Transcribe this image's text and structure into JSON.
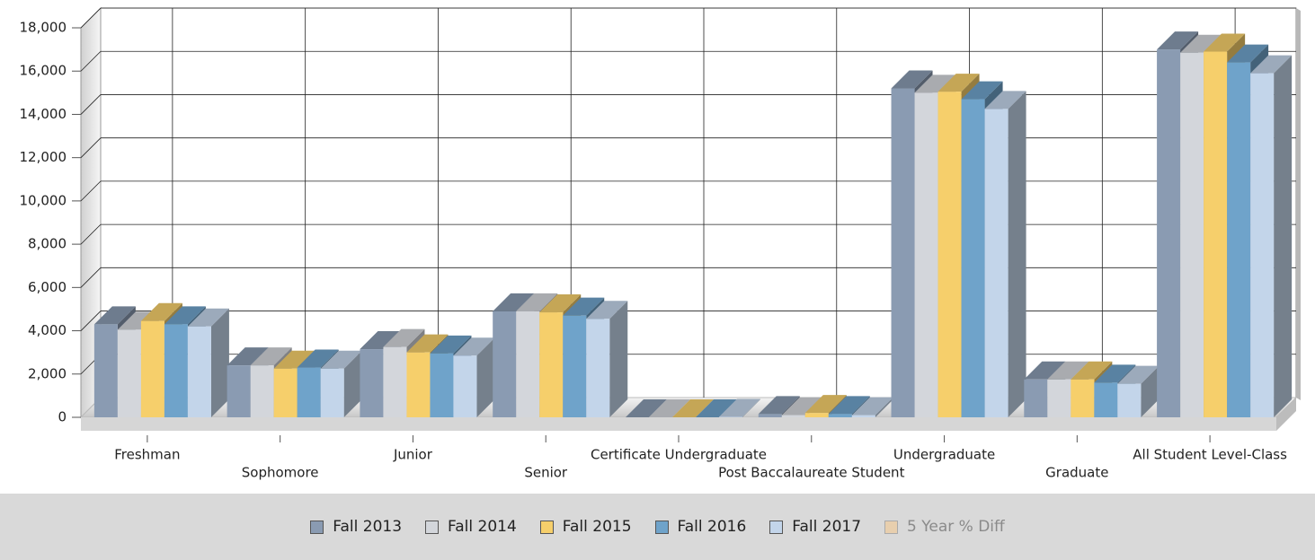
{
  "chart_data": {
    "type": "bar3d",
    "categories": [
      "Freshman",
      "Sophomore",
      "Junior",
      "Senior",
      "Certificate Undergraduate",
      "Post Baccalaureate Student",
      "Undergraduate",
      "Graduate",
      "All Student Level-Class"
    ],
    "series": [
      {
        "name": "Fall 2013",
        "color": "#8a9bb2",
        "values": [
          4300,
          2400,
          3150,
          4900,
          0,
          150,
          15200,
          1750,
          17000
        ]
      },
      {
        "name": "Fall 2014",
        "color": "#d3d6db",
        "values": [
          4050,
          2400,
          3250,
          4900,
          0,
          100,
          15000,
          1750,
          16850
        ]
      },
      {
        "name": "Fall 2015",
        "color": "#f6cf6b",
        "values": [
          4450,
          2250,
          3000,
          4850,
          0,
          200,
          15050,
          1750,
          16900
        ]
      },
      {
        "name": "Fall 2016",
        "color": "#6fa3ca",
        "values": [
          4300,
          2300,
          2950,
          4700,
          0,
          150,
          14700,
          1600,
          16400
        ]
      },
      {
        "name": "Fall 2017",
        "color": "#c3d5ea",
        "values": [
          4200,
          2250,
          2850,
          4550,
          20,
          100,
          14250,
          1550,
          15900
        ]
      },
      {
        "name": "5 Year % Diff",
        "color": "#e8cfae",
        "visible": false
      }
    ],
    "ylim": [
      0,
      18000
    ],
    "yticks": [
      0,
      {
        "value": 2000,
        "label": "2,000"
      },
      {
        "value": 4000,
        "label": "4,000"
      },
      {
        "value": 6000,
        "label": "6,000"
      },
      {
        "value": 8000,
        "label": "8,000"
      },
      {
        "value": 10000,
        "label": "10,000"
      },
      {
        "value": 12000,
        "label": "12,000"
      },
      {
        "value": 14000,
        "label": "14,000"
      },
      {
        "value": 16000,
        "label": "16,000"
      },
      {
        "value": 18000,
        "label": "18,000"
      }
    ],
    "grid": true
  }
}
